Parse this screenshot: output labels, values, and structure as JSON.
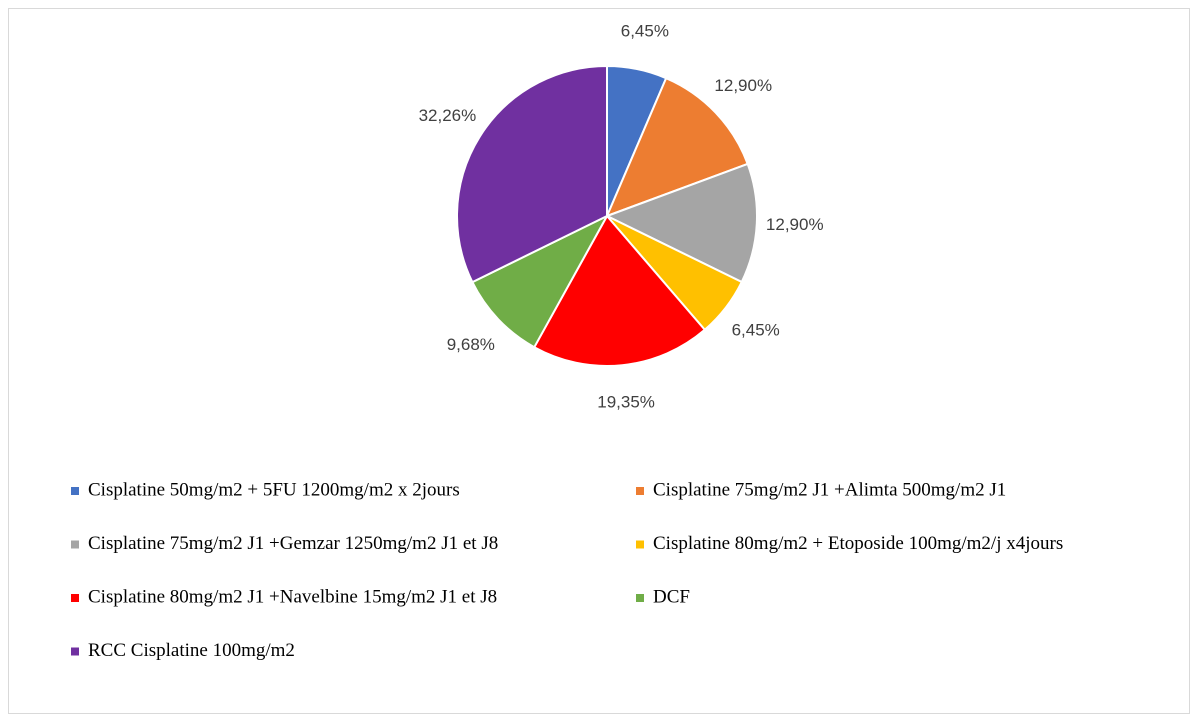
{
  "chart_data": {
    "type": "pie",
    "categories": [
      "Cisplatine 50mg/m2 + 5FU 1200mg/m2 x 2jours",
      "Cisplatine 75mg/m2 J1 +Alimta 500mg/m2 J1",
      "Cisplatine 75mg/m2 J1 +Gemzar 1250mg/m2 J1 et J8",
      "Cisplatine 80mg/m2 + Etoposide 100mg/m2/j x4jours",
      "Cisplatine 80mg/m2 J1 +Navelbine 15mg/m2 J1 et J8",
      "DCF",
      "RCC Cisplatine 100mg/m2"
    ],
    "values": [
      6.45,
      12.9,
      12.9,
      6.45,
      19.35,
      9.68,
      32.26
    ],
    "value_labels": [
      "6,45%",
      "12,90%",
      "12,90%",
      "6,45%",
      "19,35%",
      "9,68%",
      "32,26%"
    ],
    "colors": [
      "#4472c4",
      "#ed7d31",
      "#a5a5a5",
      "#ffc000",
      "#ff0000",
      "#70ad47",
      "#7030a0"
    ],
    "legend": "bottom"
  }
}
